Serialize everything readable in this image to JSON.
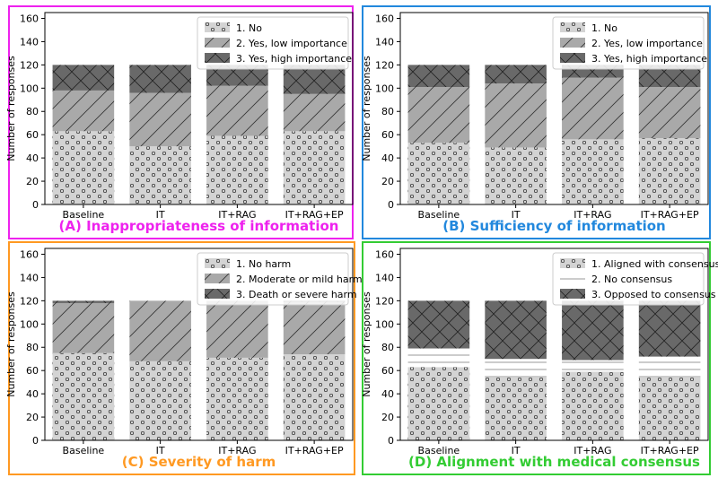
{
  "chart_data": [
    {
      "type": "bar",
      "stacked": true,
      "title": "(A) Inappropriateness of information",
      "title_color": "#ee22ee",
      "ylabel": "Number of responses",
      "categories": [
        "Baseline",
        "IT",
        "IT+RAG",
        "IT+RAG+EP"
      ],
      "ylim": [
        0,
        165
      ],
      "yticks": [
        "0",
        "20",
        "40",
        "60",
        "80",
        "100",
        "120",
        "140",
        "160"
      ],
      "legend_position": "top-right",
      "series": [
        {
          "name": "1. No",
          "values": [
            63,
            50,
            59,
            63
          ],
          "pattern": "circles"
        },
        {
          "name": "2. Yes, low importance",
          "values": [
            35,
            46,
            43,
            32
          ],
          "pattern": "diag"
        },
        {
          "name": "3. Yes, high importance",
          "values": [
            22,
            24,
            18,
            25
          ],
          "pattern": "cross"
        }
      ]
    },
    {
      "type": "bar",
      "stacked": true,
      "title": "(B) Sufficiency of information",
      "title_color": "#2288dd",
      "ylabel": "Number of responses",
      "categories": [
        "Baseline",
        "IT",
        "IT+RAG",
        "IT+RAG+EP"
      ],
      "ylim": [
        0,
        165
      ],
      "yticks": [
        "0",
        "20",
        "40",
        "60",
        "80",
        "100",
        "120",
        "140",
        "160"
      ],
      "legend_position": "top-right",
      "series": [
        {
          "name": "1. No",
          "values": [
            53,
            49,
            56,
            57
          ],
          "pattern": "circles"
        },
        {
          "name": "2. Yes, low importance",
          "values": [
            48,
            55,
            53,
            44
          ],
          "pattern": "diag"
        },
        {
          "name": "3. Yes, high importance",
          "values": [
            19,
            16,
            11,
            19
          ],
          "pattern": "cross"
        }
      ]
    },
    {
      "type": "bar",
      "stacked": true,
      "title": "(C) Severity of harm",
      "title_color": "#ff9922",
      "ylabel": "Number of responses",
      "categories": [
        "Baseline",
        "IT",
        "IT+RAG",
        "IT+RAG+EP"
      ],
      "ylim": [
        0,
        165
      ],
      "yticks": [
        "0",
        "20",
        "40",
        "60",
        "80",
        "100",
        "120",
        "140",
        "160"
      ],
      "legend_position": "top-right",
      "series": [
        {
          "name": "1. No harm",
          "values": [
            75,
            68,
            71,
            74
          ],
          "pattern": "circles"
        },
        {
          "name": "2. Moderate or mild harm",
          "values": [
            43,
            52,
            49,
            45
          ],
          "pattern": "diag"
        },
        {
          "name": "3. Death or severe harm",
          "values": [
            2,
            0,
            0,
            1
          ],
          "pattern": "cross"
        }
      ]
    },
    {
      "type": "bar",
      "stacked": true,
      "title": "(D) Alignment with medical consensus",
      "title_color": "#33cc33",
      "ylabel": "Number of responses",
      "categories": [
        "Baseline",
        "IT",
        "IT+RAG",
        "IT+RAG+EP"
      ],
      "ylim": [
        0,
        165
      ],
      "yticks": [
        "0",
        "20",
        "40",
        "60",
        "80",
        "100",
        "120",
        "140",
        "160"
      ],
      "legend_position": "top-right",
      "series": [
        {
          "name": "1. Aligned with consensus",
          "values": [
            63,
            54,
            59,
            54
          ],
          "pattern": "circles"
        },
        {
          "name": "2. No consensus",
          "values": [
            16,
            16,
            10,
            18
          ],
          "pattern": "hlines"
        },
        {
          "name": "3. Opposed to consensus",
          "values": [
            41,
            50,
            51,
            48
          ],
          "pattern": "cross"
        }
      ]
    }
  ]
}
